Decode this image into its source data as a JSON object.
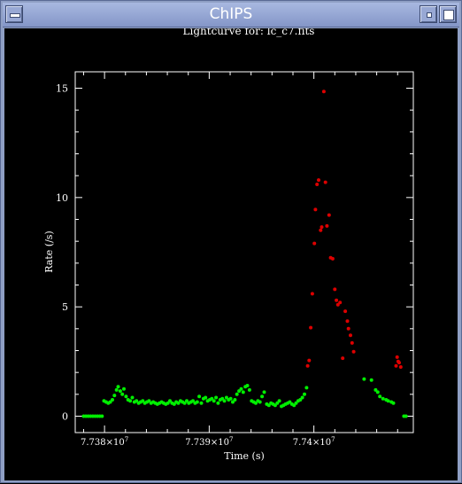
{
  "window": {
    "title": "ChIPS"
  },
  "chart_data": {
    "type": "scatter",
    "title": "Lightcurve for: lc_c7.fits",
    "xlabel": "Time (s)",
    "ylabel": "Rate (/s)",
    "xlim": [
      77377200,
      77409500
    ],
    "ylim": [
      -0.75,
      15.75
    ],
    "x_ticks": [
      {
        "value": 77380000,
        "label_mant": "7.738×10",
        "label_exp": "7"
      },
      {
        "value": 77390000,
        "label_mant": "7.739×10",
        "label_exp": "7"
      },
      {
        "value": 77400000,
        "label_mant": "7.74×10",
        "label_exp": "7"
      }
    ],
    "y_ticks": [
      0,
      5,
      10,
      15
    ],
    "series": [
      {
        "color": "#00ee00",
        "points": [
          [
            77378000,
            0
          ],
          [
            77378220,
            0
          ],
          [
            77378440,
            0
          ],
          [
            77378660,
            0
          ],
          [
            77378880,
            0
          ],
          [
            77379100,
            0
          ],
          [
            77379320,
            0
          ],
          [
            77379540,
            0
          ],
          [
            77379760,
            0
          ],
          [
            77379950,
            0.7
          ],
          [
            77380150,
            0.65
          ],
          [
            77380350,
            0.6
          ],
          [
            77380550,
            0.65
          ],
          [
            77380750,
            0.75
          ],
          [
            77380950,
            0.95
          ],
          [
            77381150,
            1.2
          ],
          [
            77381300,
            1.35
          ],
          [
            77381500,
            1.15
          ],
          [
            77381700,
            1.0
          ],
          [
            77381850,
            1.25
          ],
          [
            77382050,
            0.9
          ],
          [
            77382250,
            0.75
          ],
          [
            77382450,
            0.7
          ],
          [
            77382650,
            0.85
          ],
          [
            77382850,
            0.65
          ],
          [
            77383050,
            0.7
          ],
          [
            77383250,
            0.6
          ],
          [
            77383450,
            0.65
          ],
          [
            77383650,
            0.7
          ],
          [
            77383850,
            0.6
          ],
          [
            77384050,
            0.65
          ],
          [
            77384250,
            0.7
          ],
          [
            77384450,
            0.6
          ],
          [
            77384650,
            0.65
          ],
          [
            77384850,
            0.6
          ],
          [
            77385050,
            0.55
          ],
          [
            77385250,
            0.6
          ],
          [
            77385450,
            0.65
          ],
          [
            77385650,
            0.6
          ],
          [
            77385850,
            0.55
          ],
          [
            77386050,
            0.6
          ],
          [
            77386250,
            0.7
          ],
          [
            77386450,
            0.6
          ],
          [
            77386650,
            0.55
          ],
          [
            77386850,
            0.65
          ],
          [
            77387050,
            0.6
          ],
          [
            77387250,
            0.7
          ],
          [
            77387450,
            0.65
          ],
          [
            77387650,
            0.6
          ],
          [
            77387850,
            0.7
          ],
          [
            77388050,
            0.6
          ],
          [
            77388250,
            0.65
          ],
          [
            77388450,
            0.7
          ],
          [
            77388650,
            0.6
          ],
          [
            77388850,
            0.65
          ],
          [
            77389050,
            0.9
          ],
          [
            77389250,
            0.6
          ],
          [
            77389450,
            0.8
          ],
          [
            77389650,
            0.85
          ],
          [
            77389850,
            0.7
          ],
          [
            77390050,
            0.75
          ],
          [
            77390250,
            0.8
          ],
          [
            77390450,
            0.7
          ],
          [
            77390650,
            0.85
          ],
          [
            77390850,
            0.6
          ],
          [
            77391050,
            0.75
          ],
          [
            77391250,
            0.8
          ],
          [
            77391450,
            0.7
          ],
          [
            77391650,
            0.85
          ],
          [
            77391850,
            0.75
          ],
          [
            77392050,
            0.8
          ],
          [
            77392250,
            0.65
          ],
          [
            77392450,
            0.75
          ],
          [
            77392650,
            1.0
          ],
          [
            77392850,
            1.15
          ],
          [
            77393050,
            1.25
          ],
          [
            77393250,
            1.1
          ],
          [
            77393450,
            1.35
          ],
          [
            77393650,
            1.4
          ],
          [
            77393850,
            1.2
          ],
          [
            77394050,
            0.7
          ],
          [
            77394250,
            0.65
          ],
          [
            77394450,
            0.6
          ],
          [
            77394650,
            0.7
          ],
          [
            77394850,
            0.65
          ],
          [
            77395050,
            0.9
          ],
          [
            77395250,
            1.1
          ],
          [
            77395500,
            0.55
          ],
          [
            77395700,
            0.5
          ],
          [
            77395900,
            0.6
          ],
          [
            77396100,
            0.55
          ],
          [
            77396300,
            0.5
          ],
          [
            77396500,
            0.6
          ],
          [
            77396700,
            0.7
          ],
          [
            77396900,
            0.45
          ],
          [
            77397100,
            0.5
          ],
          [
            77397300,
            0.55
          ],
          [
            77397500,
            0.6
          ],
          [
            77397700,
            0.65
          ],
          [
            77397900,
            0.55
          ],
          [
            77398100,
            0.5
          ],
          [
            77398300,
            0.6
          ],
          [
            77398500,
            0.7
          ],
          [
            77398700,
            0.75
          ],
          [
            77398900,
            0.85
          ],
          [
            77399100,
            1.0
          ],
          [
            77399300,
            1.3
          ],
          [
            77404800,
            1.7
          ],
          [
            77405500,
            1.65
          ],
          [
            77405900,
            1.2
          ],
          [
            77406100,
            1.1
          ],
          [
            77406300,
            0.9
          ],
          [
            77406600,
            0.8
          ],
          [
            77406900,
            0.75
          ],
          [
            77407100,
            0.7
          ],
          [
            77407400,
            0.65
          ],
          [
            77407600,
            0.6
          ],
          [
            77408600,
            0
          ],
          [
            77408800,
            0
          ]
        ]
      },
      {
        "color": "#dd0000",
        "points": [
          [
            77399400,
            2.3
          ],
          [
            77399550,
            2.55
          ],
          [
            77399700,
            4.05
          ],
          [
            77399850,
            5.6
          ],
          [
            77400050,
            7.9
          ],
          [
            77400150,
            9.45
          ],
          [
            77400300,
            10.6
          ],
          [
            77400450,
            10.8
          ],
          [
            77400650,
            8.5
          ],
          [
            77400750,
            8.65
          ],
          [
            77400950,
            14.85
          ],
          [
            77401100,
            10.7
          ],
          [
            77401250,
            8.7
          ],
          [
            77401450,
            9.2
          ],
          [
            77401600,
            7.25
          ],
          [
            77401800,
            7.2
          ],
          [
            77402000,
            5.8
          ],
          [
            77402150,
            5.3
          ],
          [
            77402300,
            5.1
          ],
          [
            77402500,
            5.2
          ],
          [
            77402750,
            2.65
          ],
          [
            77403000,
            4.8
          ],
          [
            77403200,
            4.35
          ],
          [
            77403300,
            4.0
          ],
          [
            77403500,
            3.7
          ],
          [
            77403650,
            3.35
          ],
          [
            77403800,
            2.95
          ],
          [
            77407850,
            2.3
          ],
          [
            77407950,
            2.7
          ],
          [
            77408050,
            2.5
          ],
          [
            77408150,
            2.45
          ],
          [
            77408300,
            2.25
          ]
        ]
      }
    ]
  }
}
